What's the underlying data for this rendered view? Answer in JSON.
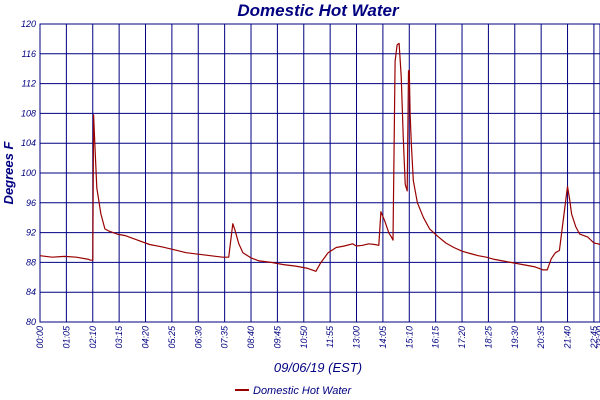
{
  "chart_data": {
    "type": "line",
    "title": "Domestic Hot Water",
    "xlabel": "09/06/19 (EST)",
    "ylabel": "Degrees F",
    "ylim": [
      80,
      120
    ],
    "yticks": [
      "80",
      "84",
      "88",
      "92",
      "96",
      "100",
      "104",
      "108",
      "112",
      "116",
      "120"
    ],
    "xlim": [
      "00:00",
      "23:00"
    ],
    "xticks": [
      "00:00",
      "01:05",
      "02:10",
      "03:15",
      "04:20",
      "05:25",
      "06:30",
      "07:35",
      "08:40",
      "09:45",
      "10:50",
      "11:55",
      "13:00",
      "14:05",
      "15:10",
      "16:15",
      "17:20",
      "18:25",
      "19:30",
      "20:35",
      "21:40",
      "22:45",
      "23:00"
    ],
    "grid": true,
    "legend": "bottom-center",
    "series": [
      {
        "name": "Domestic Hot Water",
        "color": "#990000",
        "x": [
          "00:00",
          "00:30",
          "01:00",
          "01:30",
          "02:00",
          "02:05",
          "02:10",
          "02:12",
          "02:15",
          "02:20",
          "02:30",
          "02:40",
          "02:50",
          "03:00",
          "03:10",
          "03:30",
          "04:00",
          "04:30",
          "05:00",
          "05:30",
          "06:00",
          "06:30",
          "07:00",
          "07:30",
          "07:45",
          "07:55",
          "08:00",
          "08:10",
          "08:20",
          "08:40",
          "09:00",
          "09:30",
          "10:00",
          "10:30",
          "11:00",
          "11:20",
          "11:30",
          "11:50",
          "12:10",
          "12:30",
          "12:50",
          "13:00",
          "13:15",
          "13:30",
          "13:45",
          "13:55",
          "14:00",
          "14:10",
          "14:20",
          "14:25",
          "14:30",
          "14:35",
          "14:40",
          "14:45",
          "14:50",
          "14:55",
          "15:00",
          "15:05",
          "15:08",
          "15:10",
          "15:12",
          "15:15",
          "15:20",
          "15:30",
          "15:45",
          "16:00",
          "16:20",
          "16:40",
          "17:00",
          "17:20",
          "17:40",
          "18:00",
          "18:20",
          "18:40",
          "19:00",
          "19:20",
          "19:40",
          "20:00",
          "20:20",
          "20:40",
          "20:50",
          "21:00",
          "21:10",
          "21:20",
          "21:40",
          "21:45",
          "21:50",
          "22:00",
          "22:10",
          "22:30",
          "22:45",
          "22:55",
          "23:00"
        ],
        "values": [
          88.9,
          88.7,
          88.8,
          88.7,
          88.4,
          88.3,
          88.3,
          107.8,
          104.0,
          98.0,
          94.5,
          92.5,
          92.2,
          92.0,
          91.8,
          91.6,
          91.0,
          90.4,
          90.1,
          89.7,
          89.3,
          89.1,
          88.9,
          88.7,
          88.7,
          93.2,
          92.4,
          90.5,
          89.3,
          88.6,
          88.2,
          88.0,
          87.7,
          87.5,
          87.2,
          86.8,
          87.8,
          89.3,
          90.0,
          90.2,
          90.5,
          90.2,
          90.3,
          90.5,
          90.4,
          90.3,
          94.8,
          93.5,
          91.9,
          91.5,
          91.0,
          115.0,
          117.2,
          117.4,
          113.0,
          105.0,
          98.5,
          97.6,
          113.7,
          113.8,
          108.0,
          104.0,
          99.0,
          96.0,
          94.0,
          92.5,
          91.5,
          90.6,
          90.0,
          89.5,
          89.2,
          88.9,
          88.7,
          88.4,
          88.2,
          88.0,
          87.8,
          87.6,
          87.4,
          87.0,
          87.0,
          88.5,
          89.3,
          89.6,
          98.2,
          96.5,
          94.5,
          92.8,
          91.8,
          91.4,
          90.6,
          90.5,
          90.4
        ]
      }
    ]
  }
}
